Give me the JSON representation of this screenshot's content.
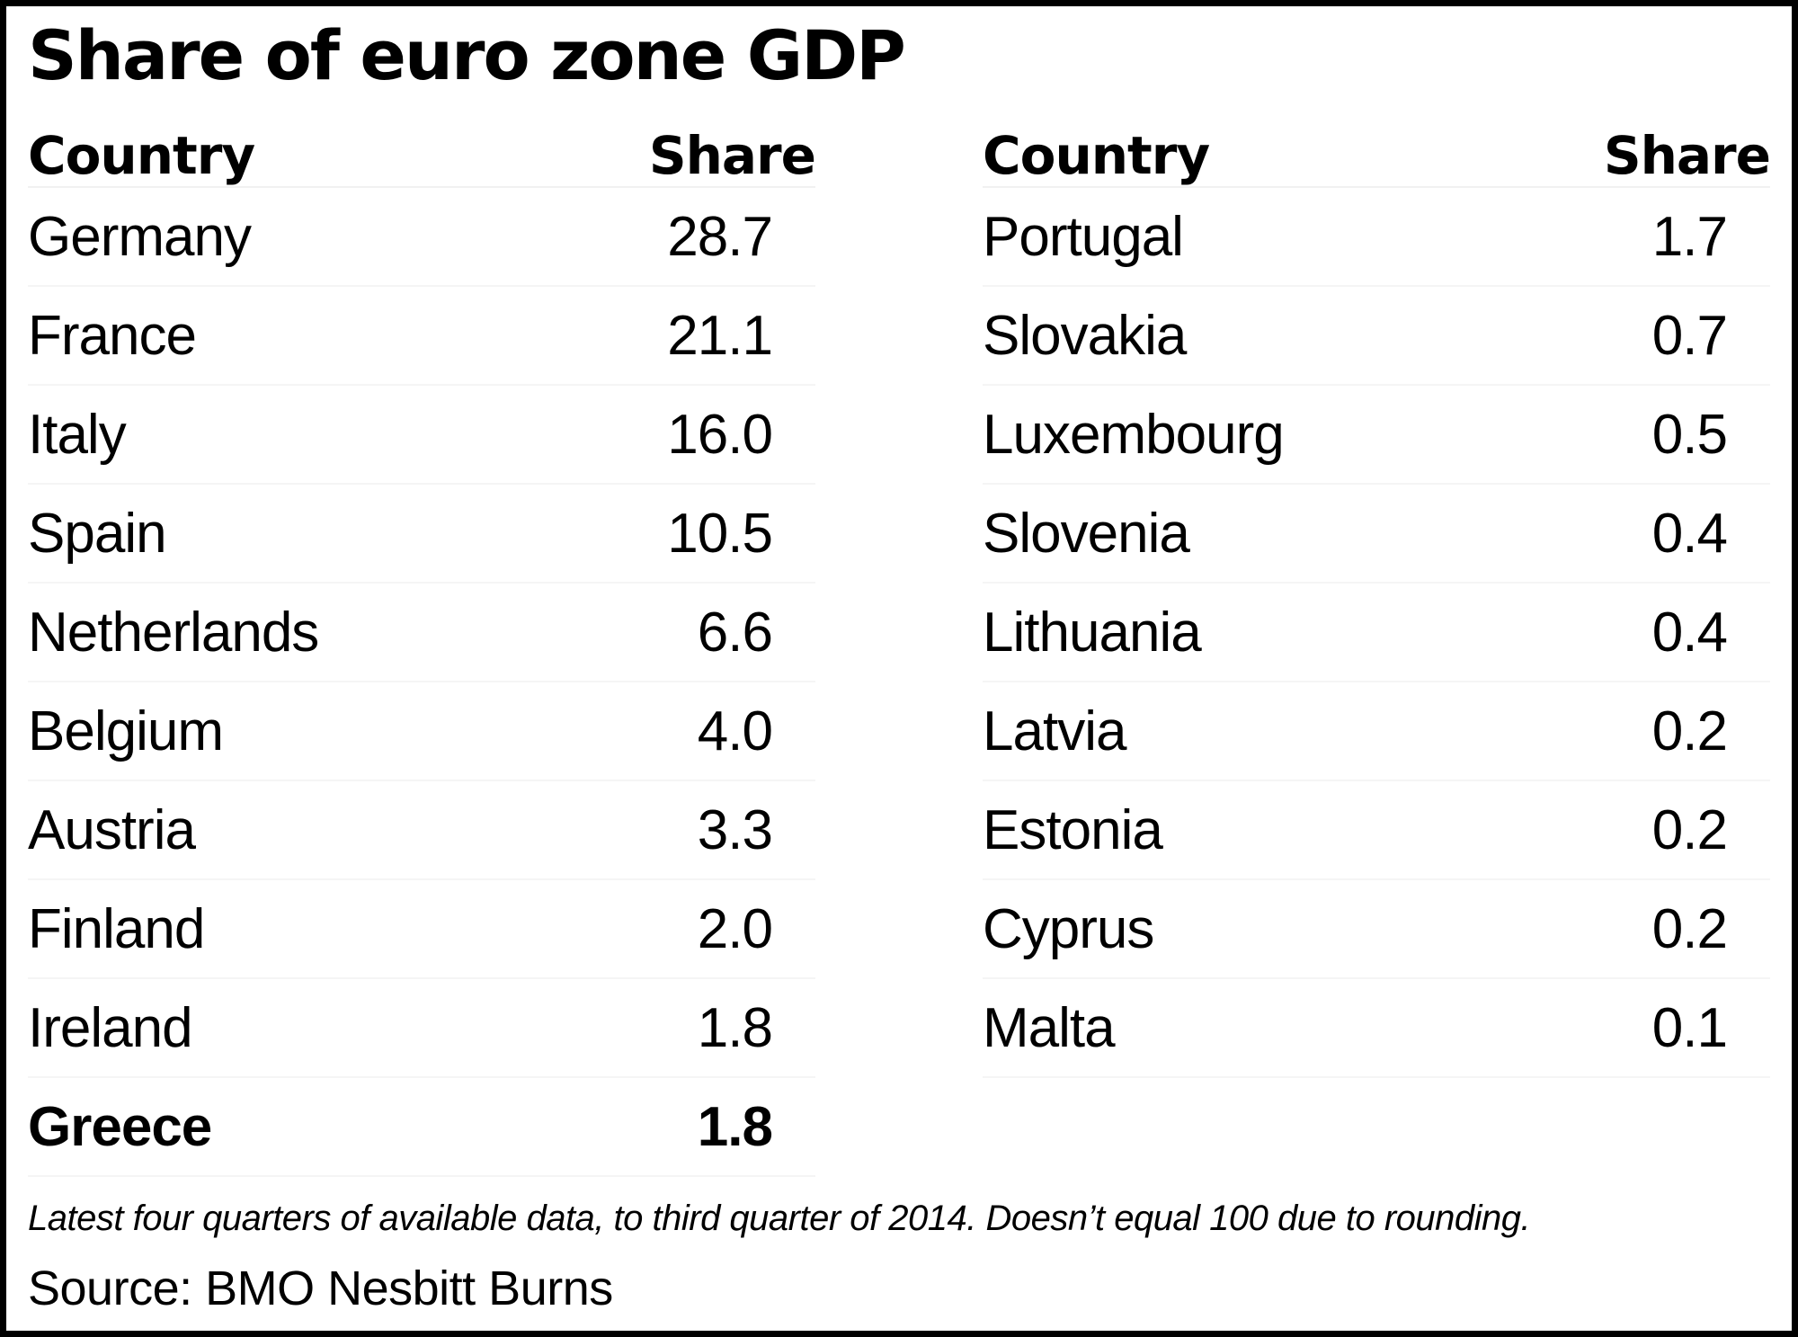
{
  "title": "Share of euro zone GDP",
  "headers": {
    "country": "Country",
    "share": "Share"
  },
  "rows": {
    "left": [
      {
        "country": "Germany",
        "share": "28.7"
      },
      {
        "country": "France",
        "share": "21.1"
      },
      {
        "country": "Italy",
        "share": "16.0"
      },
      {
        "country": "Spain",
        "share": "10.5"
      },
      {
        "country": "Netherlands",
        "share": "6.6"
      },
      {
        "country": "Belgium",
        "share": "4.0"
      },
      {
        "country": "Austria",
        "share": "3.3"
      },
      {
        "country": "Finland",
        "share": "2.0"
      },
      {
        "country": "Ireland",
        "share": "1.8"
      },
      {
        "country": "Greece",
        "share": "1.8"
      }
    ],
    "right": [
      {
        "country": "Portugal",
        "share": "1.7"
      },
      {
        "country": "Slovakia",
        "share": "0.7"
      },
      {
        "country": "Luxembourg",
        "share": "0.5"
      },
      {
        "country": "Slovenia",
        "share": "0.4"
      },
      {
        "country": "Lithuania",
        "share": "0.4"
      },
      {
        "country": "Latvia",
        "share": "0.2"
      },
      {
        "country": "Estonia",
        "share": "0.2"
      },
      {
        "country": "Cyprus",
        "share": "0.2"
      },
      {
        "country": "Malta",
        "share": "0.1"
      }
    ]
  },
  "footnote": "Latest four quarters of available data, to third quarter of 2014. Doesn’t equal 100 due to rounding.",
  "source": "Source: BMO Nesbitt Burns",
  "colors": {
    "text": "#000000",
    "background": "#ffffff",
    "border": "#000000"
  },
  "chart_data": {
    "type": "table",
    "title": "Share of euro zone GDP",
    "columns": [
      "Country",
      "Share"
    ],
    "rows": [
      [
        "Germany",
        28.7
      ],
      [
        "France",
        21.1
      ],
      [
        "Italy",
        16.0
      ],
      [
        "Spain",
        10.5
      ],
      [
        "Netherlands",
        6.6
      ],
      [
        "Belgium",
        4.0
      ],
      [
        "Austria",
        3.3
      ],
      [
        "Finland",
        2.0
      ],
      [
        "Ireland",
        1.8
      ],
      [
        "Greece",
        1.8
      ],
      [
        "Portugal",
        1.7
      ],
      [
        "Slovakia",
        0.7
      ],
      [
        "Luxembourg",
        0.5
      ],
      [
        "Slovenia",
        0.4
      ],
      [
        "Lithuania",
        0.4
      ],
      [
        "Latvia",
        0.2
      ],
      [
        "Estonia",
        0.2
      ],
      [
        "Cyprus",
        0.2
      ],
      [
        "Malta",
        0.1
      ]
    ],
    "footnote": "Latest four quarters of available data, to third quarter of 2014. Doesn’t equal 100 due to rounding.",
    "source": "BMO Nesbitt Burns"
  }
}
